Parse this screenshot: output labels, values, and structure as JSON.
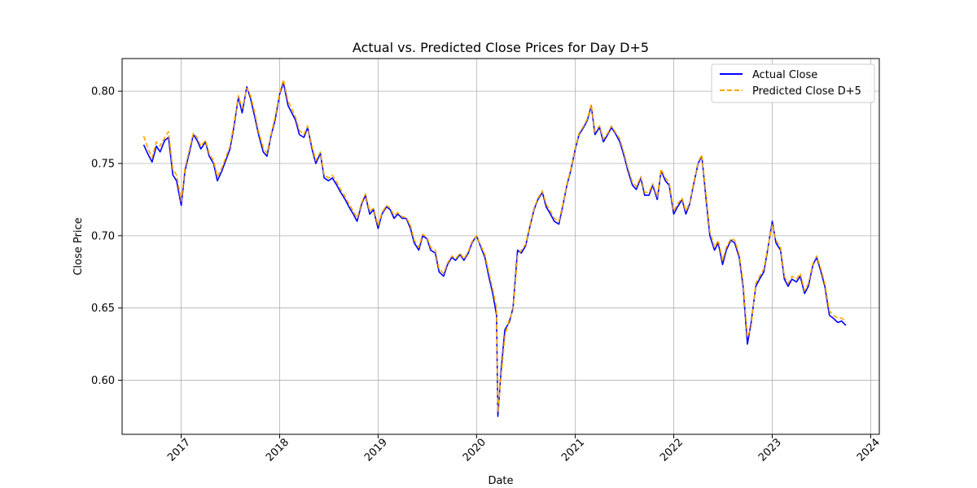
{
  "chart_data": {
    "type": "line",
    "title": "Actual vs. Predicted Close Prices for Day D+5",
    "xlabel": "Date",
    "ylabel": "Close Price",
    "x_ticks": [
      "2017",
      "2018",
      "2019",
      "2020",
      "2021",
      "2022",
      "2023",
      "2024"
    ],
    "y_ticks": [
      "0.60",
      "0.65",
      "0.70",
      "0.75",
      "0.80"
    ],
    "xlim": [
      "2016-05-27",
      "2024-02-02"
    ],
    "ylim": [
      0.5626,
      0.8226
    ],
    "grid": true,
    "legend_position": "upper right",
    "series": [
      {
        "name": "Actual Close",
        "color": "#0000ff",
        "style": "solid",
        "x": [
          "2016-08-15",
          "2016-09-01",
          "2016-09-15",
          "2016-10-01",
          "2016-10-15",
          "2016-11-01",
          "2016-11-15",
          "2016-12-01",
          "2016-12-15",
          "2017-01-01",
          "2017-01-15",
          "2017-02-01",
          "2017-02-15",
          "2017-03-01",
          "2017-03-15",
          "2017-04-01",
          "2017-04-15",
          "2017-05-01",
          "2017-05-15",
          "2017-06-01",
          "2017-06-15",
          "2017-07-01",
          "2017-07-15",
          "2017-08-01",
          "2017-08-15",
          "2017-09-01",
          "2017-09-15",
          "2017-10-01",
          "2017-10-15",
          "2017-11-01",
          "2017-11-15",
          "2017-12-01",
          "2017-12-15",
          "2018-01-01",
          "2018-01-15",
          "2018-02-01",
          "2018-02-15",
          "2018-03-01",
          "2018-03-15",
          "2018-04-01",
          "2018-04-15",
          "2018-05-01",
          "2018-05-15",
          "2018-06-01",
          "2018-06-15",
          "2018-07-01",
          "2018-07-15",
          "2018-08-01",
          "2018-08-15",
          "2018-09-01",
          "2018-09-15",
          "2018-10-01",
          "2018-10-15",
          "2018-11-01",
          "2018-11-15",
          "2018-12-01",
          "2018-12-15",
          "2019-01-01",
          "2019-01-15",
          "2019-02-01",
          "2019-02-15",
          "2019-03-01",
          "2019-03-15",
          "2019-04-01",
          "2019-04-15",
          "2019-05-01",
          "2019-05-15",
          "2019-06-01",
          "2019-06-15",
          "2019-07-01",
          "2019-07-15",
          "2019-08-01",
          "2019-08-15",
          "2019-09-01",
          "2019-09-15",
          "2019-10-01",
          "2019-10-15",
          "2019-11-01",
          "2019-11-15",
          "2019-12-01",
          "2019-12-15",
          "2020-01-01",
          "2020-01-15",
          "2020-02-01",
          "2020-02-15",
          "2020-03-01",
          "2020-03-15",
          "2020-03-20",
          "2020-04-01",
          "2020-04-15",
          "2020-05-01",
          "2020-05-15",
          "2020-06-01",
          "2020-06-15",
          "2020-07-01",
          "2020-07-15",
          "2020-08-01",
          "2020-08-15",
          "2020-09-01",
          "2020-09-15",
          "2020-10-01",
          "2020-10-15",
          "2020-11-01",
          "2020-11-15",
          "2020-12-01",
          "2020-12-15",
          "2021-01-01",
          "2021-01-15",
          "2021-02-01",
          "2021-02-15",
          "2021-03-01",
          "2021-03-15",
          "2021-04-01",
          "2021-04-15",
          "2021-05-01",
          "2021-05-15",
          "2021-06-01",
          "2021-06-15",
          "2021-07-01",
          "2021-07-15",
          "2021-08-01",
          "2021-08-15",
          "2021-09-01",
          "2021-09-15",
          "2021-10-01",
          "2021-10-15",
          "2021-11-01",
          "2021-11-15",
          "2021-12-01",
          "2021-12-15",
          "2022-01-01",
          "2022-01-15",
          "2022-02-01",
          "2022-02-15",
          "2022-03-01",
          "2022-03-15",
          "2022-04-01",
          "2022-04-15",
          "2022-05-01",
          "2022-05-15",
          "2022-06-01",
          "2022-06-15",
          "2022-07-01",
          "2022-07-15",
          "2022-08-01",
          "2022-08-15",
          "2022-09-01",
          "2022-09-15",
          "2022-10-01",
          "2022-10-15",
          "2022-11-01",
          "2022-11-15",
          "2022-12-01",
          "2022-12-15",
          "2023-01-01",
          "2023-01-15",
          "2023-02-01",
          "2023-02-15",
          "2023-03-01",
          "2023-03-15",
          "2023-04-01",
          "2023-04-15",
          "2023-05-01",
          "2023-05-15",
          "2023-06-01",
          "2023-06-15",
          "2023-07-01",
          "2023-07-15",
          "2023-08-01",
          "2023-08-15",
          "2023-09-01",
          "2023-09-15",
          "2023-10-01"
        ],
        "values": [
          0.763,
          0.756,
          0.751,
          0.762,
          0.758,
          0.766,
          0.768,
          0.742,
          0.738,
          0.721,
          0.745,
          0.758,
          0.77,
          0.766,
          0.76,
          0.765,
          0.755,
          0.75,
          0.738,
          0.745,
          0.752,
          0.76,
          0.775,
          0.796,
          0.785,
          0.803,
          0.795,
          0.782,
          0.77,
          0.758,
          0.755,
          0.77,
          0.78,
          0.798,
          0.806,
          0.79,
          0.785,
          0.78,
          0.77,
          0.768,
          0.775,
          0.76,
          0.75,
          0.757,
          0.74,
          0.738,
          0.74,
          0.735,
          0.73,
          0.725,
          0.72,
          0.715,
          0.71,
          0.722,
          0.728,
          0.715,
          0.718,
          0.705,
          0.715,
          0.72,
          0.718,
          0.712,
          0.715,
          0.712,
          0.712,
          0.705,
          0.695,
          0.69,
          0.7,
          0.698,
          0.69,
          0.688,
          0.675,
          0.672,
          0.68,
          0.685,
          0.683,
          0.687,
          0.683,
          0.688,
          0.695,
          0.7,
          0.693,
          0.685,
          0.672,
          0.66,
          0.645,
          0.575,
          0.607,
          0.635,
          0.64,
          0.65,
          0.69,
          0.688,
          0.693,
          0.705,
          0.718,
          0.725,
          0.73,
          0.72,
          0.715,
          0.71,
          0.708,
          0.72,
          0.735,
          0.745,
          0.76,
          0.77,
          0.775,
          0.78,
          0.79,
          0.77,
          0.775,
          0.765,
          0.77,
          0.775,
          0.77,
          0.765,
          0.755,
          0.745,
          0.735,
          0.732,
          0.74,
          0.728,
          0.728,
          0.735,
          0.725,
          0.745,
          0.738,
          0.735,
          0.715,
          0.72,
          0.725,
          0.715,
          0.722,
          0.735,
          0.75,
          0.755,
          0.725,
          0.7,
          0.69,
          0.695,
          0.68,
          0.69,
          0.697,
          0.695,
          0.685,
          0.665,
          0.625,
          0.64,
          0.665,
          0.67,
          0.675,
          0.69,
          0.71,
          0.695,
          0.69,
          0.67,
          0.665,
          0.67,
          0.668,
          0.672,
          0.66,
          0.665,
          0.68,
          0.685,
          0.675,
          0.665,
          0.645,
          0.643,
          0.64,
          0.641,
          0.638
        ]
      },
      {
        "name": "Predicted Close D+5",
        "color": "#ffa500",
        "style": "dashed",
        "x": [
          "2016-08-15",
          "2016-09-01",
          "2016-09-15",
          "2016-10-01",
          "2016-10-15",
          "2016-11-01",
          "2016-11-15",
          "2016-12-01",
          "2016-12-15",
          "2017-01-01",
          "2017-01-15",
          "2017-02-01",
          "2017-02-15",
          "2017-03-01",
          "2017-03-15",
          "2017-04-01",
          "2017-04-15",
          "2017-05-01",
          "2017-05-15",
          "2017-06-01",
          "2017-06-15",
          "2017-07-01",
          "2017-07-15",
          "2017-08-01",
          "2017-08-15",
          "2017-09-01",
          "2017-09-15",
          "2017-10-01",
          "2017-10-15",
          "2017-11-01",
          "2017-11-15",
          "2017-12-01",
          "2017-12-15",
          "2018-01-01",
          "2018-01-15",
          "2018-02-01",
          "2018-02-15",
          "2018-03-01",
          "2018-03-15",
          "2018-04-01",
          "2018-04-15",
          "2018-05-01",
          "2018-05-15",
          "2018-06-01",
          "2018-06-15",
          "2018-07-01",
          "2018-07-15",
          "2018-08-01",
          "2018-08-15",
          "2018-09-01",
          "2018-09-15",
          "2018-10-01",
          "2018-10-15",
          "2018-11-01",
          "2018-11-15",
          "2018-12-01",
          "2018-12-15",
          "2019-01-01",
          "2019-01-15",
          "2019-02-01",
          "2019-02-15",
          "2019-03-01",
          "2019-03-15",
          "2019-04-01",
          "2019-04-15",
          "2019-05-01",
          "2019-05-15",
          "2019-06-01",
          "2019-06-15",
          "2019-07-01",
          "2019-07-15",
          "2019-08-01",
          "2019-08-15",
          "2019-09-01",
          "2019-09-15",
          "2019-10-01",
          "2019-10-15",
          "2019-11-01",
          "2019-11-15",
          "2019-12-01",
          "2019-12-15",
          "2020-01-01",
          "2020-01-15",
          "2020-02-01",
          "2020-02-15",
          "2020-03-01",
          "2020-03-15",
          "2020-03-20",
          "2020-04-01",
          "2020-04-15",
          "2020-05-01",
          "2020-05-15",
          "2020-06-01",
          "2020-06-15",
          "2020-07-01",
          "2020-07-15",
          "2020-08-01",
          "2020-08-15",
          "2020-09-01",
          "2020-09-15",
          "2020-10-01",
          "2020-10-15",
          "2020-11-01",
          "2020-11-15",
          "2020-12-01",
          "2020-12-15",
          "2021-01-01",
          "2021-01-15",
          "2021-02-01",
          "2021-02-15",
          "2021-03-01",
          "2021-03-15",
          "2021-04-01",
          "2021-04-15",
          "2021-05-01",
          "2021-05-15",
          "2021-06-01",
          "2021-06-15",
          "2021-07-01",
          "2021-07-15",
          "2021-08-01",
          "2021-08-15",
          "2021-09-01",
          "2021-09-15",
          "2021-10-01",
          "2021-10-15",
          "2021-11-01",
          "2021-11-15",
          "2021-12-01",
          "2021-12-15",
          "2022-01-01",
          "2022-01-15",
          "2022-02-01",
          "2022-02-15",
          "2022-03-01",
          "2022-03-15",
          "2022-04-01",
          "2022-04-15",
          "2022-05-01",
          "2022-05-15",
          "2022-06-01",
          "2022-06-15",
          "2022-07-01",
          "2022-07-15",
          "2022-08-01",
          "2022-08-15",
          "2022-09-01",
          "2022-09-15",
          "2022-10-01",
          "2022-10-15",
          "2022-11-01",
          "2022-11-15",
          "2022-12-01",
          "2022-12-15",
          "2023-01-01",
          "2023-01-15",
          "2023-02-01",
          "2023-02-15",
          "2023-03-01",
          "2023-03-15",
          "2023-04-01",
          "2023-04-15",
          "2023-05-01",
          "2023-05-15",
          "2023-06-01",
          "2023-06-15",
          "2023-07-01",
          "2023-07-15",
          "2023-08-01",
          "2023-08-15",
          "2023-09-01",
          "2023-09-15",
          "2023-10-01"
        ],
        "values": [
          0.769,
          0.76,
          0.754,
          0.765,
          0.762,
          0.768,
          0.772,
          0.746,
          0.742,
          0.724,
          0.747,
          0.76,
          0.771,
          0.768,
          0.762,
          0.766,
          0.757,
          0.752,
          0.741,
          0.747,
          0.754,
          0.762,
          0.777,
          0.797,
          0.788,
          0.802,
          0.797,
          0.785,
          0.772,
          0.761,
          0.757,
          0.771,
          0.782,
          0.799,
          0.808,
          0.793,
          0.788,
          0.782,
          0.773,
          0.77,
          0.776,
          0.762,
          0.752,
          0.758,
          0.742,
          0.74,
          0.742,
          0.737,
          0.732,
          0.727,
          0.722,
          0.717,
          0.712,
          0.723,
          0.729,
          0.717,
          0.719,
          0.707,
          0.716,
          0.721,
          0.719,
          0.714,
          0.716,
          0.713,
          0.713,
          0.707,
          0.697,
          0.692,
          0.701,
          0.699,
          0.692,
          0.69,
          0.677,
          0.674,
          0.681,
          0.686,
          0.684,
          0.688,
          0.684,
          0.689,
          0.696,
          0.7,
          0.694,
          0.687,
          0.675,
          0.663,
          0.65,
          0.578,
          0.603,
          0.63,
          0.642,
          0.648,
          0.686,
          0.69,
          0.694,
          0.706,
          0.719,
          0.726,
          0.731,
          0.722,
          0.717,
          0.712,
          0.71,
          0.721,
          0.736,
          0.746,
          0.761,
          0.771,
          0.776,
          0.781,
          0.791,
          0.772,
          0.776,
          0.767,
          0.771,
          0.776,
          0.771,
          0.767,
          0.757,
          0.747,
          0.737,
          0.734,
          0.741,
          0.73,
          0.73,
          0.736,
          0.727,
          0.746,
          0.74,
          0.737,
          0.717,
          0.722,
          0.726,
          0.717,
          0.723,
          0.736,
          0.751,
          0.756,
          0.728,
          0.703,
          0.692,
          0.697,
          0.683,
          0.692,
          0.698,
          0.697,
          0.687,
          0.668,
          0.63,
          0.637,
          0.667,
          0.672,
          0.677,
          0.691,
          0.708,
          0.697,
          0.692,
          0.672,
          0.667,
          0.672,
          0.67,
          0.674,
          0.662,
          0.667,
          0.681,
          0.686,
          0.677,
          0.667,
          0.648,
          0.645,
          0.643,
          0.643,
          0.641
        ]
      }
    ]
  }
}
